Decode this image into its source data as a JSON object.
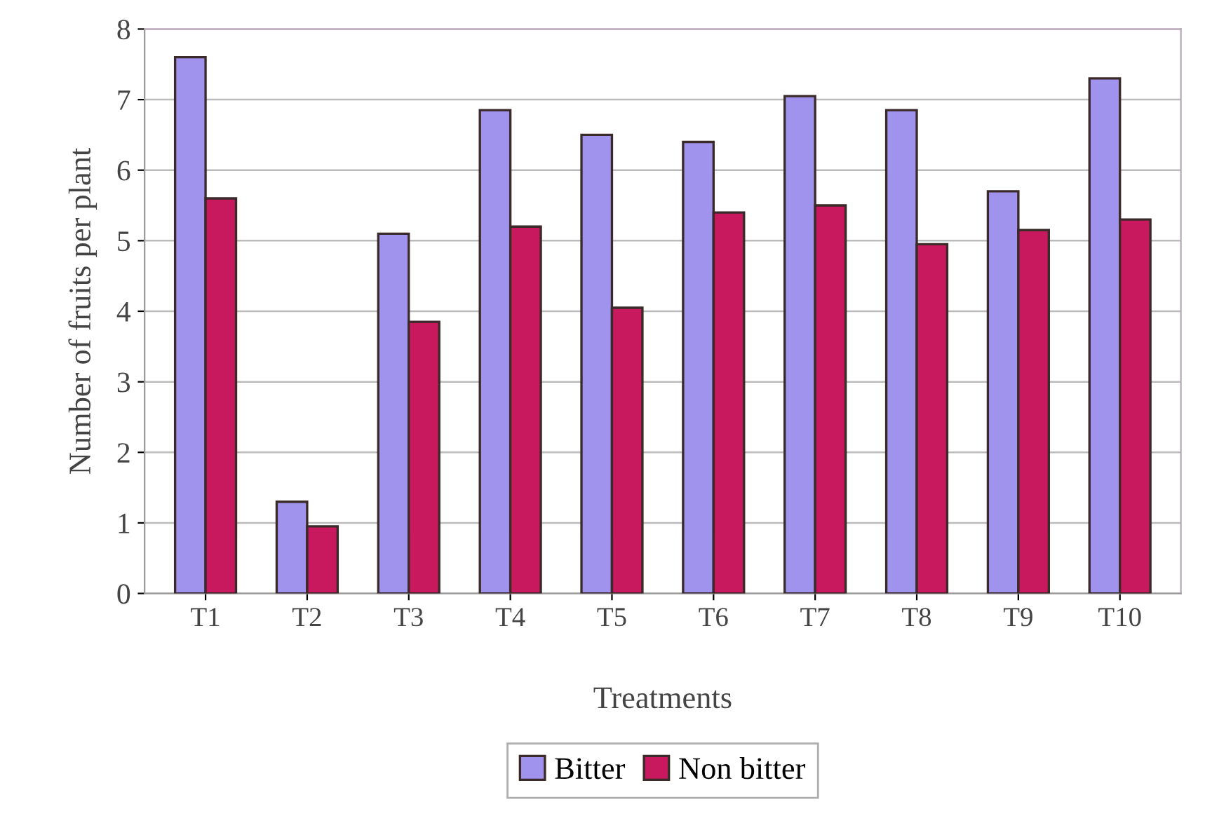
{
  "chart_data": {
    "type": "bar",
    "xlabel": "Treatments",
    "ylabel": "Number of fruits per plant",
    "categories": [
      "T1",
      "T2",
      "T3",
      "T4",
      "T5",
      "T6",
      "T7",
      "T8",
      "T9",
      "T10"
    ],
    "series": [
      {
        "name": "Bitter",
        "color": "#a093ee",
        "values": [
          7.6,
          1.3,
          5.1,
          6.85,
          6.5,
          6.4,
          7.05,
          6.85,
          5.7,
          7.3
        ]
      },
      {
        "name": "Non bitter",
        "color": "#c8185e",
        "values": [
          5.6,
          0.95,
          3.85,
          5.2,
          4.05,
          5.4,
          5.5,
          4.95,
          5.15,
          5.3
        ]
      }
    ],
    "ylim": [
      0,
      8
    ],
    "yticks": [
      0,
      1,
      2,
      3,
      4,
      5,
      6,
      7,
      8
    ],
    "grid": "y",
    "legend": "bottom"
  }
}
